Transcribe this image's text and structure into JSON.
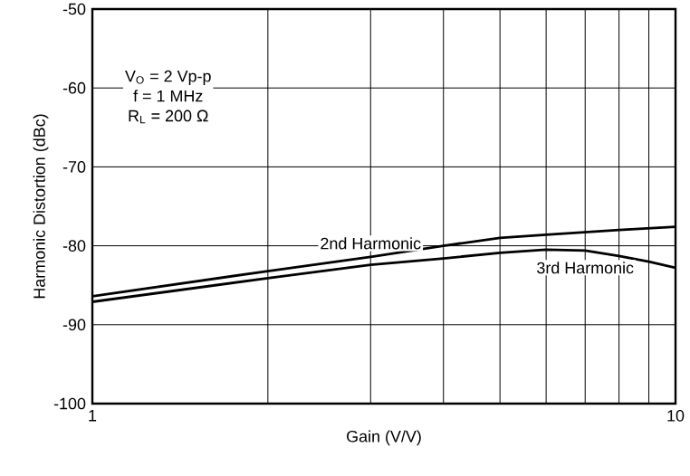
{
  "chart_data": {
    "type": "line",
    "xlabel": "Gain (V/V)",
    "ylabel": "Harmonic Distortion (dBc)",
    "annotations": [
      "V$_{O}$ = 2 Vp-p",
      "f = 1 MHz",
      "R$_{L}$ = 200 Ω"
    ],
    "log": "x",
    "grid": true,
    "marker": "none",
    "line_style": "solid",
    "xlim": [
      1,
      10
    ],
    "ylim": [
      -100,
      -50
    ],
    "xticks": [
      {
        "value": 1,
        "label": "1"
      },
      {
        "value": 2,
        "label": null
      },
      {
        "value": 3,
        "label": null
      },
      {
        "value": 4,
        "label": null
      },
      {
        "value": 5,
        "label": null
      },
      {
        "value": 6,
        "label": null
      },
      {
        "value": 7,
        "label": null
      },
      {
        "value": 8,
        "label": null
      },
      {
        "value": 9,
        "label": null
      },
      {
        "value": 10,
        "label": "10"
      }
    ],
    "yticks": [
      -100,
      -90,
      -80,
      -70,
      -60,
      -50
    ],
    "series": [
      {
        "name": "2nd Harmonic",
        "color": "#000000",
        "x": [
          1,
          2,
          3,
          4,
          5,
          6,
          8,
          10
        ],
        "values": [
          -86.4,
          -83.2,
          -81.4,
          -80.0,
          -79.0,
          -78.6,
          -78.0,
          -77.6
        ]
      },
      {
        "name": "3rd Harmonic",
        "color": "#000000",
        "x": [
          1,
          2,
          3,
          4,
          5,
          6,
          7,
          8,
          9,
          10
        ],
        "values": [
          -87.1,
          -84.1,
          -82.4,
          -81.6,
          -80.9,
          -80.5,
          -80.6,
          -81.3,
          -82.0,
          -82.8
        ]
      }
    ]
  }
}
